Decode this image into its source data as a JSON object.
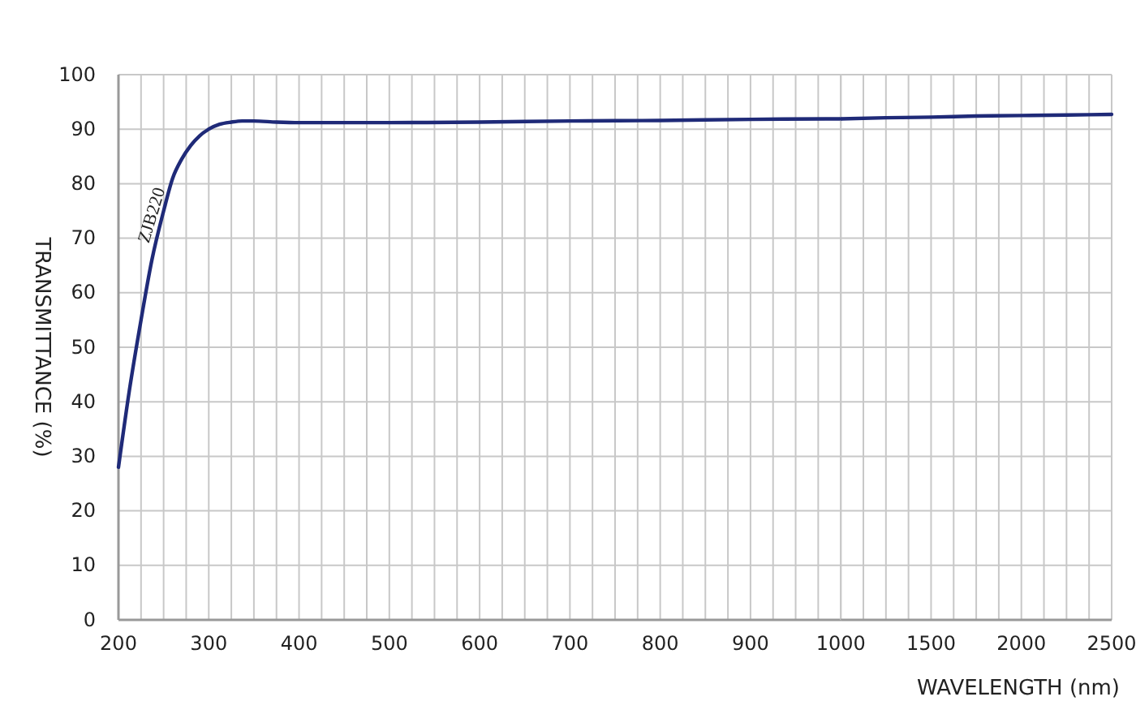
{
  "chart_data": [
    {
      "type": "line",
      "ylabel": "TRANSMITTANCE  (%)",
      "xlim": [
        200,
        1000
      ],
      "xticks": [
        200,
        300,
        400,
        500,
        600,
        700,
        800,
        900,
        1000
      ],
      "ylim": [
        0,
        100
      ],
      "yticks": [
        0,
        10,
        20,
        30,
        40,
        50,
        60,
        70,
        80,
        90,
        100
      ],
      "grid": true,
      "series": [
        {
          "name": "ZJB220",
          "color": "#1f2a78",
          "x": [
            200,
            212,
            225,
            237,
            250,
            260,
            270,
            280,
            290,
            300,
            312,
            325,
            337,
            350,
            375,
            400,
            500,
            600,
            700,
            800,
            900,
            1000
          ],
          "values": [
            28,
            42,
            55,
            66,
            75,
            81,
            84.5,
            87,
            88.8,
            90,
            90.9,
            91.3,
            91.5,
            91.5,
            91.3,
            91.2,
            91.2,
            91.3,
            91.5,
            91.6,
            91.8,
            91.9
          ]
        }
      ]
    },
    {
      "type": "line",
      "xlabel": "WAVELENGTH (nm)",
      "tick_labels": "x",
      "xlim": [
        1000,
        2500
      ],
      "xticks": [
        {
          "value": 1000,
          "label": null
        },
        1500,
        2000,
        2500
      ],
      "ylim": [
        0,
        100
      ],
      "yticks": [
        0,
        10,
        20,
        30,
        40,
        50,
        60,
        70,
        80,
        90,
        100
      ],
      "grid": true,
      "series": [
        {
          "color": "#1f2a78",
          "x": [
            1000,
            1250,
            1500,
            1750,
            2000,
            2250,
            2500
          ],
          "values": [
            91.9,
            92.1,
            92.2,
            92.4,
            92.5,
            92.6,
            92.7
          ]
        }
      ]
    }
  ]
}
